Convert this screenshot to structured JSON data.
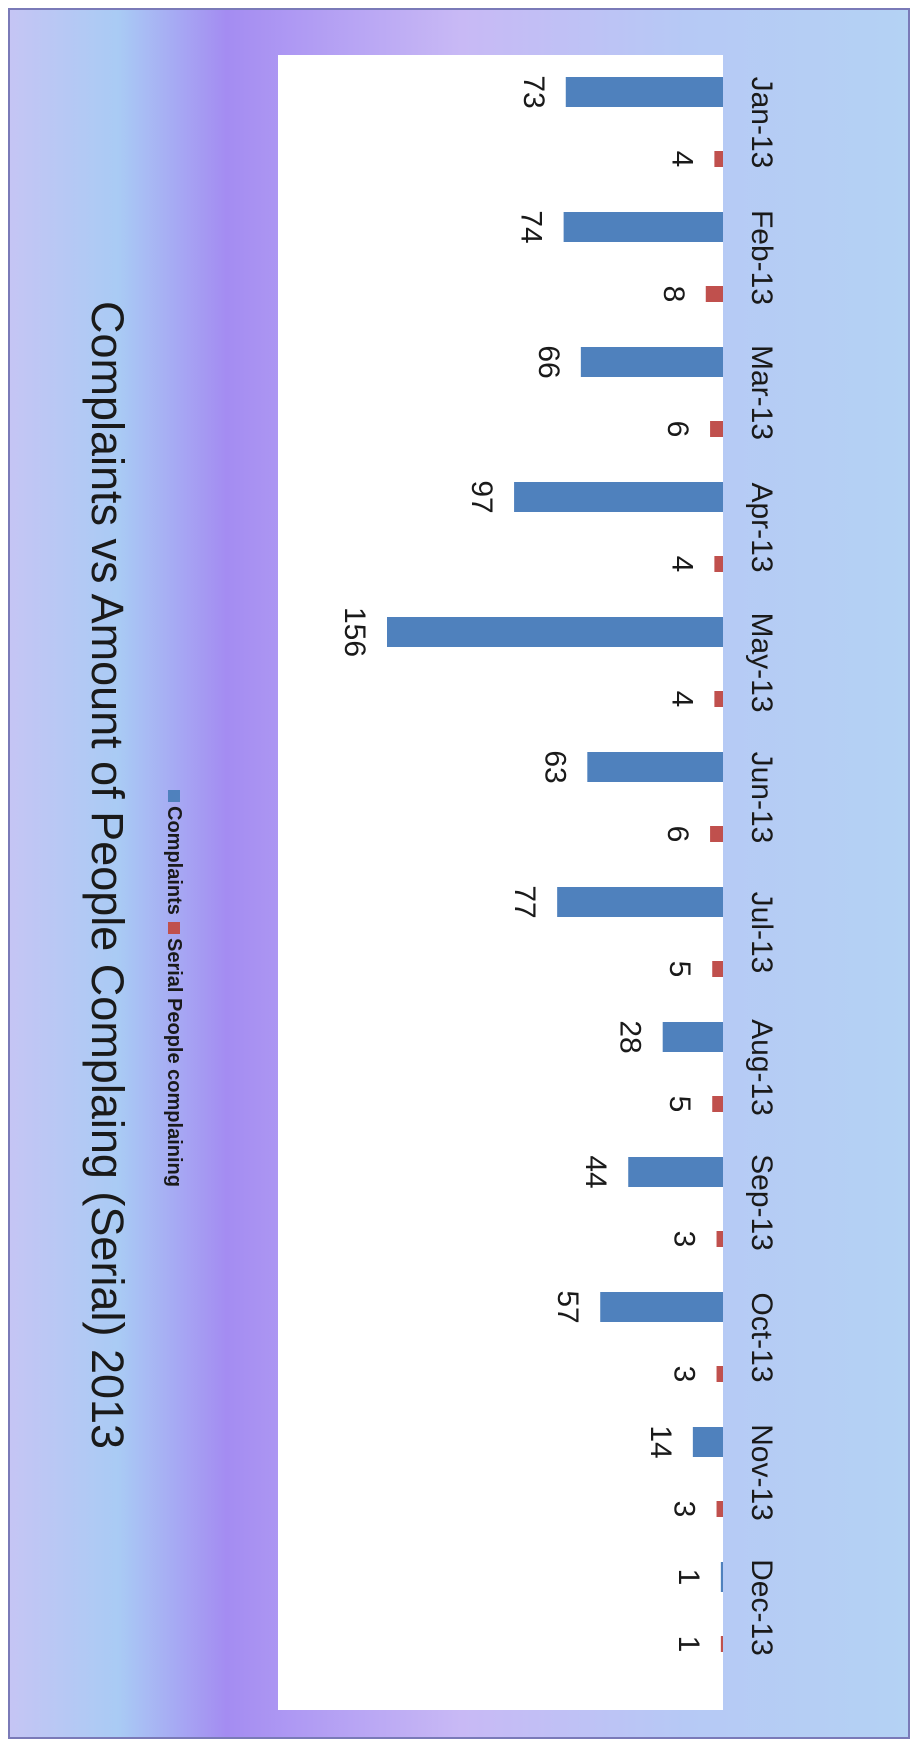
{
  "chart_data": {
    "type": "bar",
    "title": "Complaints vs Amount of People Complaing (Serial) 2013",
    "orientation": "rotated-90-clockwise",
    "categories": [
      "Jan-13",
      "Feb-13",
      "Mar-13",
      "Apr-13",
      "May-13",
      "Jun-13",
      "Jul-13",
      "Aug-13",
      "Sep-13",
      "Oct-13",
      "Nov-13",
      "Dec-13"
    ],
    "series": [
      {
        "name": "Complaints",
        "values": [
          73,
          74,
          66,
          97,
          156,
          63,
          77,
          28,
          44,
          57,
          14,
          1
        ],
        "color": "#4f81bd"
      },
      {
        "name": "Serial People complaining",
        "values": [
          4,
          8,
          6,
          4,
          4,
          6,
          5,
          5,
          3,
          3,
          3,
          1
        ],
        "color": "#c0504d"
      }
    ],
    "ylim": [
      0,
      156
    ],
    "data_labels": true,
    "legend": "top",
    "grid": false,
    "colors": {
      "frame_light": "#bcd8f5",
      "frame_purple": "#a78cf0",
      "plot_bg": "#ffffff",
      "text": "#1a1a1a"
    }
  }
}
